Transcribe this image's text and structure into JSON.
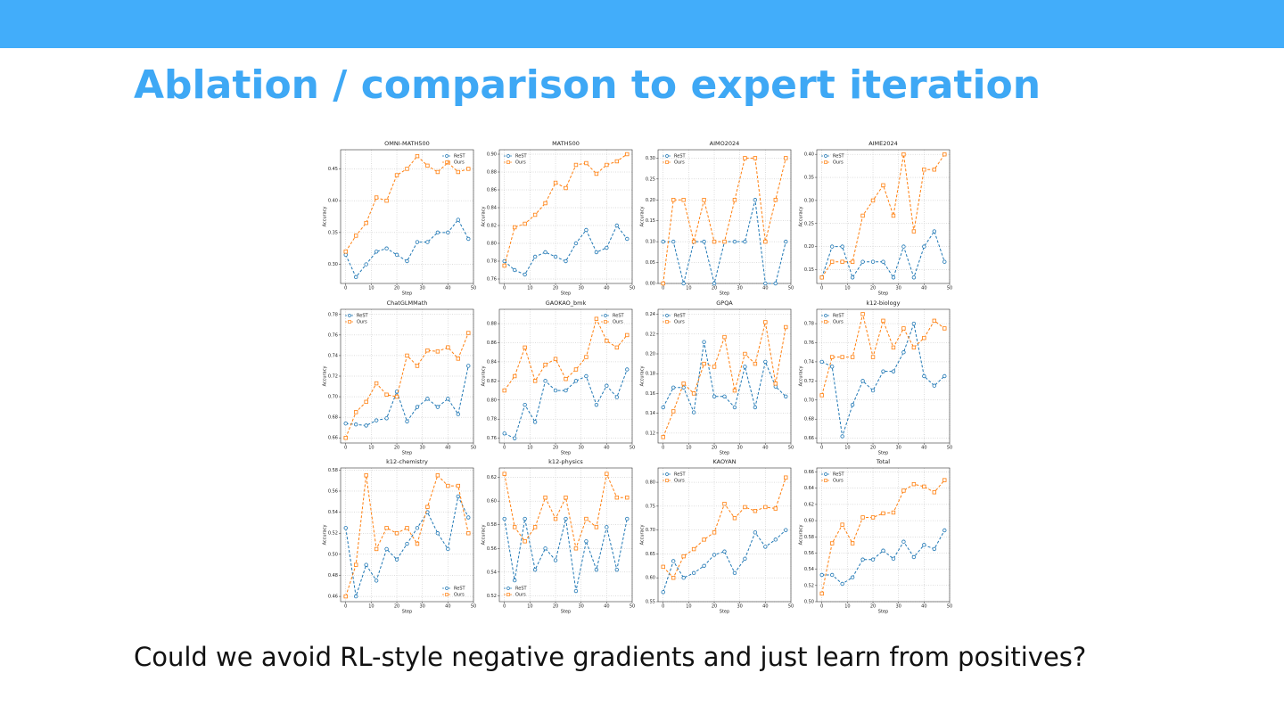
{
  "title": "Ablation / comparison to expert iteration",
  "caption": "Could we avoid RL-style negative gradients and just learn from positives?",
  "chart_data": [
    {
      "type": "line",
      "title": "OMNI-MATH500",
      "x_label": "Step",
      "y_label": "Accuracy",
      "legend": "upper right",
      "grid": true,
      "x": [
        0,
        4,
        8,
        12,
        16,
        20,
        24,
        28,
        32,
        36,
        40,
        44,
        48
      ],
      "xlim": [
        -2,
        50
      ],
      "xticks": [
        0,
        10,
        20,
        30,
        40,
        50
      ],
      "ylim": [
        0.27,
        0.48
      ],
      "yticks": [
        {
          "value": 0.3,
          "label": "0.30"
        },
        0.35,
        {
          "value": 0.4,
          "label": "0.40"
        },
        0.45
      ],
      "series": [
        {
          "name": "ReST",
          "color": "#1f77b4",
          "marker": "circle",
          "values": [
            0.315,
            0.28,
            0.3,
            0.32,
            0.325,
            0.315,
            0.305,
            0.335,
            0.335,
            0.35,
            0.35,
            0.37,
            0.34
          ]
        },
        {
          "name": "Ours",
          "color": "#ff7f0e",
          "marker": "square",
          "values": [
            0.32,
            0.345,
            0.365,
            0.405,
            0.4,
            0.44,
            0.45,
            0.47,
            0.455,
            0.445,
            0.46,
            0.445,
            0.45
          ]
        }
      ]
    },
    {
      "type": "line",
      "title": "MATH500",
      "x_label": "Step",
      "y_label": "Accuracy",
      "legend": "upper left",
      "grid": true,
      "x": [
        0,
        4,
        8,
        12,
        16,
        20,
        24,
        28,
        32,
        36,
        40,
        44,
        48
      ],
      "xlim": [
        -2,
        50
      ],
      "xticks": [
        0,
        10,
        20,
        30,
        40,
        50
      ],
      "ylim": [
        0.755,
        0.905
      ],
      "yticks": [
        0.76,
        0.78,
        {
          "value": 0.8,
          "label": "0.80"
        },
        0.82,
        0.84,
        0.86,
        0.88,
        {
          "value": 0.9,
          "label": "0.90"
        }
      ],
      "series": [
        {
          "name": "ReST",
          "color": "#1f77b4",
          "marker": "circle",
          "values": [
            0.78,
            0.77,
            0.765,
            0.785,
            0.79,
            0.785,
            0.78,
            0.8,
            0.815,
            0.79,
            0.795,
            0.82,
            0.805
          ]
        },
        {
          "name": "Ours",
          "color": "#ff7f0e",
          "marker": "square",
          "values": [
            0.775,
            0.818,
            0.822,
            0.832,
            0.845,
            0.868,
            0.862,
            0.888,
            0.89,
            0.878,
            0.888,
            0.892,
            0.9
          ]
        }
      ]
    },
    {
      "type": "line",
      "title": "AIMO2024",
      "x_label": "Step",
      "y_label": "Accuracy",
      "legend": "upper left",
      "grid": true,
      "x": [
        0,
        4,
        8,
        12,
        16,
        20,
        24,
        28,
        32,
        36,
        40,
        44,
        48
      ],
      "xlim": [
        -2,
        50
      ],
      "xticks": [
        0,
        10,
        20,
        30,
        40,
        50
      ],
      "ylim": [
        0,
        0.32
      ],
      "yticks": [
        {
          "value": 0,
          "label": "0.00"
        },
        0.05,
        {
          "value": 0.1,
          "label": "0.10"
        },
        0.15,
        {
          "value": 0.2,
          "label": "0.20"
        },
        0.25,
        {
          "value": 0.3,
          "label": "0.30"
        }
      ],
      "series": [
        {
          "name": "ReST",
          "color": "#1f77b4",
          "marker": "circle",
          "values": [
            0.1,
            0.1,
            0,
            0.1,
            0.1,
            0,
            0.1,
            0.1,
            0.1,
            0.2,
            0,
            0,
            0.1
          ]
        },
        {
          "name": "Ours",
          "color": "#ff7f0e",
          "marker": "square",
          "values": [
            0,
            0.2,
            0.2,
            0.1,
            0.2,
            0.1,
            0.1,
            0.2,
            0.3,
            0.3,
            0.1,
            0.2,
            0.3
          ]
        }
      ]
    },
    {
      "type": "line",
      "title": "AIME2024",
      "x_label": "Step",
      "y_label": "Accuracy",
      "legend": "upper left",
      "grid": true,
      "x": [
        0,
        4,
        8,
        12,
        16,
        20,
        24,
        28,
        32,
        36,
        40,
        44,
        48
      ],
      "xlim": [
        -2,
        50
      ],
      "xticks": [
        0,
        10,
        20,
        30,
        40,
        50
      ],
      "ylim": [
        0.12,
        0.41
      ],
      "yticks": [
        0.15,
        {
          "value": 0.2,
          "label": "0.20"
        },
        0.25,
        {
          "value": 0.3,
          "label": "0.30"
        },
        0.35,
        {
          "value": 0.4,
          "label": "0.40"
        }
      ],
      "series": [
        {
          "name": "ReST",
          "color": "#1f77b4",
          "marker": "circle",
          "values": [
            0.133,
            0.2,
            0.2,
            0.133,
            0.167,
            0.167,
            0.167,
            0.133,
            0.2,
            0.133,
            0.2,
            0.233,
            0.167
          ]
        },
        {
          "name": "Ours",
          "color": "#ff7f0e",
          "marker": "square",
          "values": [
            0.133,
            0.167,
            0.167,
            0.167,
            0.267,
            0.3,
            0.333,
            0.267,
            0.4,
            0.233,
            0.367,
            0.367,
            0.4
          ]
        }
      ]
    },
    {
      "type": "line",
      "title": "ChatGLMMath",
      "x_label": "Step",
      "y_label": "Accuracy",
      "legend": "upper left",
      "grid": true,
      "x": [
        0,
        4,
        8,
        12,
        16,
        20,
        24,
        28,
        32,
        36,
        40,
        44,
        48
      ],
      "xlim": [
        -2,
        50
      ],
      "xticks": [
        0,
        10,
        20,
        30,
        40,
        50
      ],
      "ylim": [
        0.655,
        0.785
      ],
      "yticks": [
        0.66,
        0.68,
        {
          "value": 0.7,
          "label": "0.70"
        },
        0.72,
        0.74,
        0.76,
        0.78
      ],
      "series": [
        {
          "name": "ReST",
          "color": "#1f77b4",
          "marker": "circle",
          "values": [
            0.674,
            0.673,
            0.672,
            0.677,
            0.679,
            0.705,
            0.676,
            0.69,
            0.698,
            0.69,
            0.698,
            0.683,
            0.73
          ]
        },
        {
          "name": "Ours",
          "color": "#ff7f0e",
          "marker": "square",
          "values": [
            0.66,
            0.685,
            0.695,
            0.713,
            0.702,
            0.7,
            0.74,
            0.73,
            0.745,
            0.744,
            0.748,
            0.737,
            0.762
          ]
        }
      ]
    },
    {
      "type": "line",
      "title": "GAOKAO_bmk",
      "x_label": "Step",
      "y_label": "Accuracy",
      "legend": "upper right",
      "grid": true,
      "x": [
        0,
        4,
        8,
        12,
        16,
        20,
        24,
        28,
        32,
        36,
        40,
        44,
        48
      ],
      "xlim": [
        -2,
        50
      ],
      "xticks": [
        0,
        10,
        20,
        30,
        40,
        50
      ],
      "ylim": [
        0.755,
        0.895
      ],
      "yticks": [
        0.76,
        0.78,
        {
          "value": 0.8,
          "label": "0.80"
        },
        0.82,
        0.84,
        0.86,
        0.88
      ],
      "series": [
        {
          "name": "ReST",
          "color": "#1f77b4",
          "marker": "circle",
          "values": [
            0.765,
            0.76,
            0.795,
            0.777,
            0.82,
            0.81,
            0.81,
            0.82,
            0.825,
            0.795,
            0.815,
            0.803,
            0.832
          ]
        },
        {
          "name": "Ours",
          "color": "#ff7f0e",
          "marker": "square",
          "values": [
            0.81,
            0.825,
            0.855,
            0.82,
            0.837,
            0.843,
            0.822,
            0.832,
            0.845,
            0.885,
            0.862,
            0.855,
            0.868
          ]
        }
      ]
    },
    {
      "type": "line",
      "title": "GPQA",
      "x_label": "Step",
      "y_label": "Accuracy",
      "legend": "upper left",
      "grid": true,
      "x": [
        0,
        4,
        8,
        12,
        16,
        20,
        24,
        28,
        32,
        36,
        40,
        44,
        48
      ],
      "xlim": [
        -2,
        50
      ],
      "xticks": [
        0,
        10,
        20,
        30,
        40,
        50
      ],
      "ylim": [
        0.11,
        0.245
      ],
      "yticks": [
        0.12,
        0.14,
        0.16,
        0.18,
        {
          "value": 0.2,
          "label": "0.20"
        },
        0.22,
        0.24
      ],
      "series": [
        {
          "name": "ReST",
          "color": "#1f77b4",
          "marker": "circle",
          "values": [
            0.146,
            0.166,
            0.166,
            0.141,
            0.212,
            0.157,
            0.157,
            0.146,
            0.187,
            0.146,
            0.192,
            0.167,
            0.157
          ]
        },
        {
          "name": "Ours",
          "color": "#ff7f0e",
          "marker": "square",
          "values": [
            0.116,
            0.142,
            0.17,
            0.16,
            0.19,
            0.187,
            0.217,
            0.163,
            0.2,
            0.19,
            0.232,
            0.17,
            0.227
          ]
        }
      ]
    },
    {
      "type": "line",
      "title": "k12-biology",
      "x_label": "Step",
      "y_label": "Accuracy",
      "legend": "upper left",
      "grid": true,
      "x": [
        0,
        4,
        8,
        12,
        16,
        20,
        24,
        28,
        32,
        36,
        40,
        44,
        48
      ],
      "xlim": [
        -2,
        50
      ],
      "xticks": [
        0,
        10,
        20,
        30,
        40,
        50
      ],
      "ylim": [
        0.655,
        0.795
      ],
      "yticks": [
        0.66,
        0.68,
        {
          "value": 0.7,
          "label": "0.70"
        },
        0.72,
        0.74,
        0.76,
        0.78
      ],
      "series": [
        {
          "name": "ReST",
          "color": "#1f77b4",
          "marker": "circle",
          "values": [
            0.74,
            0.735,
            0.662,
            0.695,
            0.72,
            0.71,
            0.73,
            0.73,
            0.75,
            0.78,
            0.725,
            0.715,
            0.725
          ]
        },
        {
          "name": "Ours",
          "color": "#ff7f0e",
          "marker": "square",
          "values": [
            0.705,
            0.745,
            0.745,
            0.745,
            0.79,
            0.745,
            0.783,
            0.755,
            0.775,
            0.755,
            0.765,
            0.783,
            0.775
          ]
        }
      ]
    },
    {
      "type": "line",
      "title": "k12-chemistry",
      "x_label": "Step",
      "y_label": "Accuracy",
      "legend": "lower right",
      "grid": true,
      "x": [
        0,
        4,
        8,
        12,
        16,
        20,
        24,
        28,
        32,
        36,
        40,
        44,
        48
      ],
      "xlim": [
        -2,
        50
      ],
      "xticks": [
        0,
        10,
        20,
        30,
        40,
        50
      ],
      "ylim": [
        0.455,
        0.582
      ],
      "yticks": [
        0.46,
        0.48,
        {
          "value": 0.5,
          "label": "0.50"
        },
        0.52,
        0.54,
        0.56,
        0.58
      ],
      "series": [
        {
          "name": "ReST",
          "color": "#1f77b4",
          "marker": "circle",
          "values": [
            0.525,
            0.46,
            0.49,
            0.475,
            0.505,
            0.495,
            0.51,
            0.525,
            0.54,
            0.52,
            0.505,
            0.555,
            0.535
          ]
        },
        {
          "name": "Ours",
          "color": "#ff7f0e",
          "marker": "square",
          "values": [
            0.46,
            0.49,
            0.575,
            0.505,
            0.525,
            0.52,
            0.525,
            0.51,
            0.545,
            0.575,
            0.565,
            0.565,
            0.52
          ]
        }
      ]
    },
    {
      "type": "line",
      "title": "k12-physics",
      "x_label": "Step",
      "y_label": "Accuracy",
      "legend": "lower left",
      "grid": true,
      "x": [
        0,
        4,
        8,
        12,
        16,
        20,
        24,
        28,
        32,
        36,
        40,
        44,
        48
      ],
      "xlim": [
        -2,
        50
      ],
      "xticks": [
        0,
        10,
        20,
        30,
        40,
        50
      ],
      "ylim": [
        0.515,
        0.628
      ],
      "yticks": [
        0.52,
        0.54,
        0.56,
        0.58,
        {
          "value": 0.6,
          "label": "0.60"
        },
        0.62
      ],
      "series": [
        {
          "name": "ReST",
          "color": "#1f77b4",
          "marker": "circle",
          "values": [
            0.585,
            0.533,
            0.585,
            0.542,
            0.56,
            0.55,
            0.585,
            0.524,
            0.566,
            0.542,
            0.578,
            0.542,
            0.585
          ]
        },
        {
          "name": "Ours",
          "color": "#ff7f0e",
          "marker": "square",
          "values": [
            0.623,
            0.578,
            0.566,
            0.578,
            0.603,
            0.585,
            0.603,
            0.56,
            0.585,
            0.578,
            0.623,
            0.603,
            0.603
          ]
        }
      ]
    },
    {
      "type": "line",
      "title": "KAOYAN",
      "x_label": "Step",
      "y_label": "Accuracy",
      "legend": "upper left",
      "grid": true,
      "x": [
        0,
        4,
        8,
        12,
        16,
        20,
        24,
        28,
        32,
        36,
        40,
        44,
        48
      ],
      "xlim": [
        -2,
        50
      ],
      "xticks": [
        0,
        10,
        20,
        30,
        40,
        50
      ],
      "ylim": [
        0.55,
        0.83
      ],
      "yticks": [
        0.55,
        {
          "value": 0.6,
          "label": "0.60"
        },
        0.65,
        {
          "value": 0.7,
          "label": "0.70"
        },
        0.75,
        {
          "value": 0.8,
          "label": "0.80"
        }
      ],
      "series": [
        {
          "name": "ReST",
          "color": "#1f77b4",
          "marker": "circle",
          "values": [
            0.57,
            0.635,
            0.6,
            0.61,
            0.625,
            0.648,
            0.655,
            0.61,
            0.64,
            0.695,
            0.665,
            0.68,
            0.7
          ]
        },
        {
          "name": "Ours",
          "color": "#ff7f0e",
          "marker": "square",
          "values": [
            0.623,
            0.6,
            0.645,
            0.66,
            0.68,
            0.695,
            0.755,
            0.725,
            0.748,
            0.74,
            0.748,
            0.745,
            0.81
          ]
        }
      ]
    },
    {
      "type": "line",
      "title": "Total",
      "x_label": "Step",
      "y_label": "Accuracy",
      "legend": "upper left",
      "grid": true,
      "x": [
        0,
        4,
        8,
        12,
        16,
        20,
        24,
        28,
        32,
        36,
        40,
        44,
        48
      ],
      "xlim": [
        -2,
        50
      ],
      "xticks": [
        0,
        10,
        20,
        30,
        40,
        50
      ],
      "ylim": [
        0.5,
        0.665
      ],
      "yticks": [
        {
          "value": 0.5,
          "label": "0.50"
        },
        0.52,
        0.54,
        0.56,
        0.58,
        {
          "value": 0.6,
          "label": "0.60"
        },
        0.62,
        0.64,
        0.66
      ],
      "series": [
        {
          "name": "ReST",
          "color": "#1f77b4",
          "marker": "circle",
          "values": [
            0.533,
            0.533,
            0.522,
            0.53,
            0.552,
            0.552,
            0.563,
            0.553,
            0.574,
            0.555,
            0.57,
            0.565,
            0.588
          ]
        },
        {
          "name": "Ours",
          "color": "#ff7f0e",
          "marker": "square",
          "values": [
            0.51,
            0.572,
            0.595,
            0.572,
            0.604,
            0.604,
            0.609,
            0.61,
            0.637,
            0.645,
            0.642,
            0.635,
            0.65
          ]
        }
      ]
    }
  ]
}
